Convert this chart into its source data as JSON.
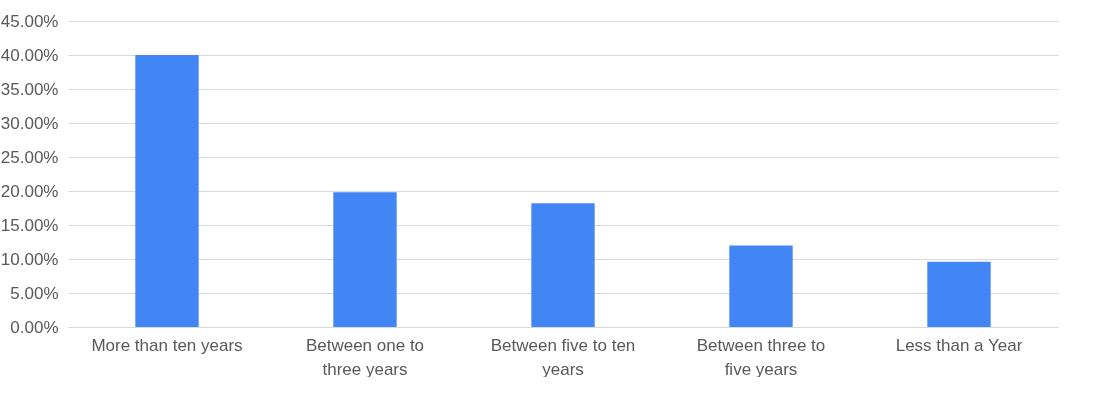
{
  "chart_data": {
    "type": "bar",
    "categories": [
      "More than ten years",
      "Between one to three years",
      "Between five to ten years",
      "Between three to five years",
      "Less than a Year"
    ],
    "values": [
      40,
      19.8,
      18.2,
      12,
      9.6
    ],
    "color": "#4285f4",
    "ylim": [
      0,
      45
    ],
    "yticks": [
      {
        "value": 0,
        "label": "0.00%"
      },
      {
        "value": 5,
        "label": "5.00%"
      },
      {
        "value": 10,
        "label": "10.00%"
      },
      {
        "value": 15,
        "label": "15.00%"
      },
      {
        "value": 20,
        "label": "20.00%"
      },
      {
        "value": 25,
        "label": "25.00%"
      },
      {
        "value": 30,
        "label": "30.00%"
      },
      {
        "value": 35,
        "label": "35.00%"
      },
      {
        "value": 40,
        "label": "40.00%"
      },
      {
        "value": 45,
        "label": "45.00%"
      }
    ],
    "grid": "y"
  }
}
